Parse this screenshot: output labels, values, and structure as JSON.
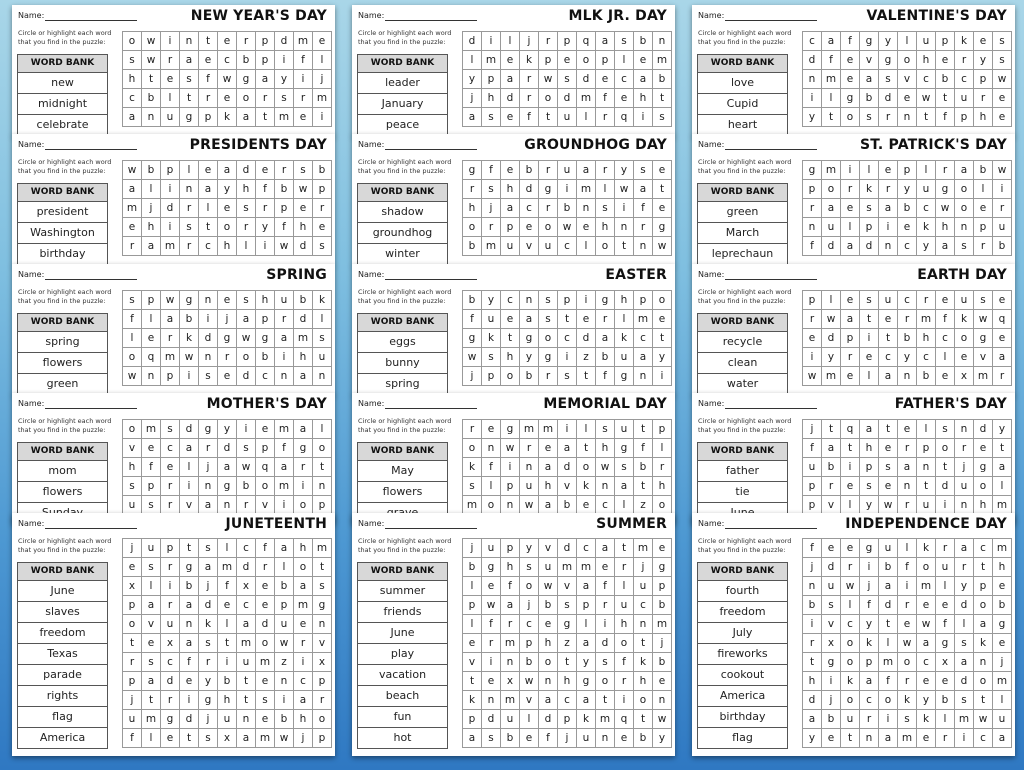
{
  "common": {
    "name_label": "Name:",
    "instructions": "Circle or highlight each word that you find in the puzzle:",
    "word_bank_label": "WORD BANK"
  },
  "sheets": [
    {
      "title": "NEW YEAR'S DAY",
      "words": [
        "new",
        "midnight",
        "celebrate"
      ],
      "grid": [
        "owinterpdme",
        "swraecbpifl",
        "htesfwgayij",
        "cbltreorsrm",
        "anugpkatmei"
      ]
    },
    {
      "title": "MLK JR. DAY",
      "words": [
        "leader",
        "January",
        "peace"
      ],
      "grid": [
        "diljrpqasbn",
        "lmekpeoplem",
        "yparwsdecab",
        "jhdrodmfeht",
        "aseftulrqis"
      ]
    },
    {
      "title": "VALENTINE'S DAY",
      "words": [
        "love",
        "Cupid",
        "heart"
      ],
      "grid": [
        "cafgylupkes",
        "dfevgoherys",
        "nmeasvcbcpw",
        "ilgbdewture",
        "ytosrntfphe"
      ]
    },
    {
      "title": "PRESIDENTS DAY",
      "words": [
        "president",
        "Washington",
        "birthday"
      ],
      "grid": [
        "wbpleadersb",
        "alinayhfbwp",
        "mjdrlesrper",
        "ehistoryfhe",
        "ramrchliwds"
      ]
    },
    {
      "title": "GROUNDHOG DAY",
      "words": [
        "shadow",
        "groundhog",
        "winter"
      ],
      "grid": [
        "gfebruaryse",
        "rshdgimlwat",
        "hjacrbnsife",
        "orpeowehnrg",
        "bmuvuclotnw"
      ]
    },
    {
      "title": "ST. PATRICK'S DAY",
      "words": [
        "green",
        "March",
        "leprechaun"
      ],
      "grid": [
        "gmileplrabw",
        "porkryugoli",
        "raesabcwoer",
        "nulpiekhnpu",
        "fdadncyasrb"
      ]
    },
    {
      "title": "SPRING",
      "words": [
        "spring",
        "flowers",
        "green"
      ],
      "grid": [
        "spwgneshubk",
        "flabijaprdl",
        "lerkdgwgams",
        "oqmwnrobihu",
        "wnpisedcnan"
      ]
    },
    {
      "title": "EASTER",
      "words": [
        "eggs",
        "bunny",
        "spring"
      ],
      "grid": [
        "bycnspighpo",
        "fueasterlme",
        "gktgocdakct",
        "wshygizbuay",
        "jpobrstfgni"
      ]
    },
    {
      "title": "EARTH DAY",
      "words": [
        "recycle",
        "clean",
        "water"
      ],
      "grid": [
        "plesucreuse",
        "rwatermfkwq",
        "edpitbhcoge",
        "iyrecycleva",
        "wmelanbexmr"
      ]
    },
    {
      "title": "MOTHER'S DAY",
      "words": [
        "mom",
        "flowers",
        "Sunday"
      ],
      "grid": [
        "omsdgyiemal",
        "vecardspfgo",
        "hfeljawqart",
        "springbomin",
        "usrvanrviop"
      ]
    },
    {
      "title": "MEMORIAL DAY",
      "words": [
        "May",
        "flowers",
        "grave"
      ],
      "grid": [
        "regmmilsutp",
        "onwreathgfl",
        "kfinadowsbr",
        "slpuhvknath",
        "monwabeclzo"
      ]
    },
    {
      "title": "FATHER'S DAY",
      "words": [
        "father",
        "tie",
        "June"
      ],
      "grid": [
        "jtqatelsndy",
        "fatherporet",
        "ubipsantjga",
        "presentduol",
        "pvlywruinhm"
      ]
    },
    {
      "title": "JUNETEENTH",
      "words": [
        "June",
        "slaves",
        "freedom",
        "Texas",
        "parade",
        "rights",
        "flag",
        "America"
      ],
      "grid": [
        "juptslcfahm",
        "esrgamdrlot",
        "xlibjfxebas",
        "paradecepmg",
        "ovunkladuen",
        "texastmowrv",
        "rscfriumzix",
        "padeybtencp",
        "jtrightsiar",
        "umgdjunebho",
        "fletsxamwjp"
      ]
    },
    {
      "title": "SUMMER",
      "words": [
        "summer",
        "friends",
        "June",
        "play",
        "vacation",
        "beach",
        "fun",
        "hot"
      ],
      "grid": [
        "jupyvdcatme",
        "bghsummerjg",
        "lefowvaflup",
        "pwajbspruncb",
        "lfrceglihnm",
        "ermphzadotj",
        "vinbotysfkb",
        "texwnhgorhe",
        "knmvacation",
        "pduldpkmqtw",
        "asbefjuneby"
      ]
    },
    {
      "title": "INDEPENDENCE DAY",
      "words": [
        "fourth",
        "freedom",
        "July",
        "fireworks",
        "cookout",
        "America",
        "birthday",
        "flag"
      ],
      "grid": [
        "feegulkracm",
        "jdribfourth",
        "nuwjaimlype",
        "bslfdreedob",
        "ivcytewflag",
        "rxoklwagske",
        "tgopmocxanj",
        "hikafreedom",
        "djocokybstl",
        "aburisklmwu",
        "yetnamerica"
      ]
    }
  ]
}
